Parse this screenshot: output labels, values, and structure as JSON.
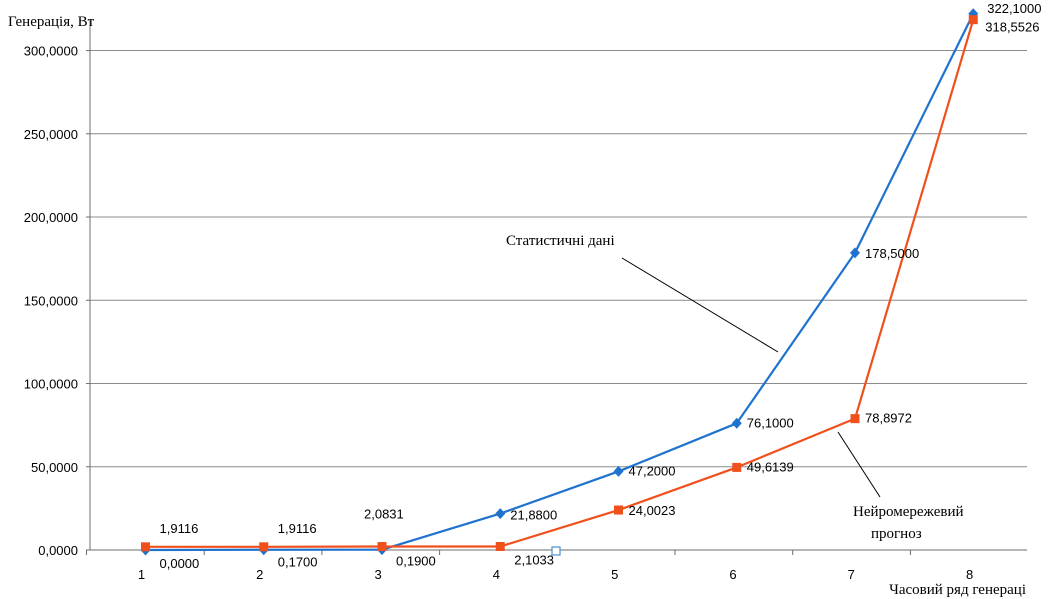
{
  "chart_data": {
    "type": "line",
    "title": "",
    "ylabel": "Генерація, Вт",
    "xlabel": "Часовий ряд генераці",
    "categories": [
      "1",
      "2",
      "3",
      "4",
      "5",
      "6",
      "7",
      "8"
    ],
    "ylim": [
      0,
      320
    ],
    "yticks": [
      0,
      50,
      100,
      150,
      200,
      250,
      300
    ],
    "ytick_labels": [
      "0,0000",
      "50,0000",
      "100,0000",
      "150,0000",
      "200,0000",
      "250,0000",
      "300,0000"
    ],
    "grid": true,
    "series": [
      {
        "name": "Статистичні дані",
        "color": "#1f73cf",
        "marker": "diamond",
        "values": [
          0.0,
          0.17,
          0.19,
          21.88,
          47.2,
          76.1,
          178.5,
          322.1
        ],
        "labels": [
          "0,0000",
          "0,1700",
          "0,1900",
          "21,8800",
          "47,2000",
          "76,1000",
          "178,5000",
          "322,1000"
        ]
      },
      {
        "name": "Нейромережевий прогноз",
        "color": "#f0501c",
        "marker": "square",
        "values": [
          1.9116,
          1.9116,
          2.0831,
          2.1033,
          24.0023,
          49.6139,
          78.8972,
          318.5526
        ],
        "labels": [
          "1,9116",
          "1,9116",
          "2,0831",
          "2,1033",
          "24,0023",
          "49,6139",
          "78,8972",
          "318,5526"
        ]
      }
    ],
    "annotations": {
      "stat_label": "Статистичні дані",
      "neuro_label_line1": "Нейромережевий",
      "neuro_label_line2": "прогноз"
    }
  }
}
